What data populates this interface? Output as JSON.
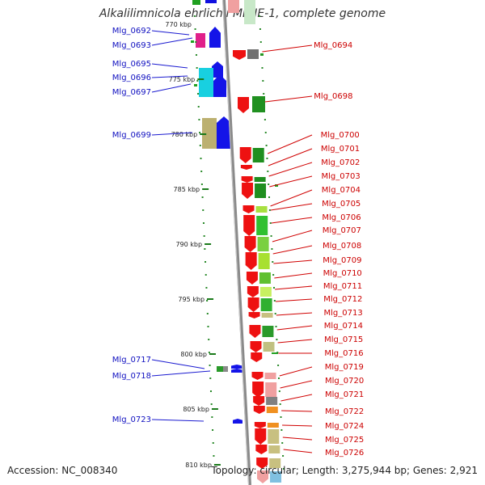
{
  "title": "Alkalilimnicola ehrlichii MLHE-1, complete genome",
  "footer": {
    "accession": "Accession: NC_008340",
    "topology": "Topology: circular; Length: 3,275,944 bp; Genes: 2,921"
  },
  "colors": {
    "left_label": "#1010c0",
    "right_label": "#cc0000",
    "leader": "#1a1ad0",
    "leader_right": "#d00000",
    "backbone": "#8a8a8a",
    "tick": "#1a7a1a"
  },
  "scale": {
    "ticks": [
      "775 kbp",
      "780 kbp",
      "785 kbp",
      "790 kbp",
      "795 kbp",
      "800 kbp",
      "805 kbp",
      "810 kbp"
    ],
    "partial_tick": "770 kbp"
  },
  "left_labels": [
    "Mlg_0692",
    "Mlg_0693",
    "Mlg_0695",
    "Mlg_0696",
    "Mlg_0697",
    "Mlg_0699",
    "Mlg_0717",
    "Mlg_0718",
    "Mlg_0723"
  ],
  "right_labels": [
    "Mlg_0694",
    "Mlg_0698",
    "Mlg_0700",
    "Mlg_0701",
    "Mlg_0702",
    "Mlg_0703",
    "Mlg_0704",
    "Mlg_0705",
    "Mlg_0706",
    "Mlg_0707",
    "Mlg_0708",
    "Mlg_0709",
    "Mlg_0710",
    "Mlg_0711",
    "Mlg_0712",
    "Mlg_0713",
    "Mlg_0714",
    "Mlg_0715",
    "Mlg_0716",
    "Mlg_0719",
    "Mlg_0720",
    "Mlg_0721",
    "Mlg_0722",
    "Mlg_0724",
    "Mlg_0725",
    "Mlg_0726"
  ]
}
